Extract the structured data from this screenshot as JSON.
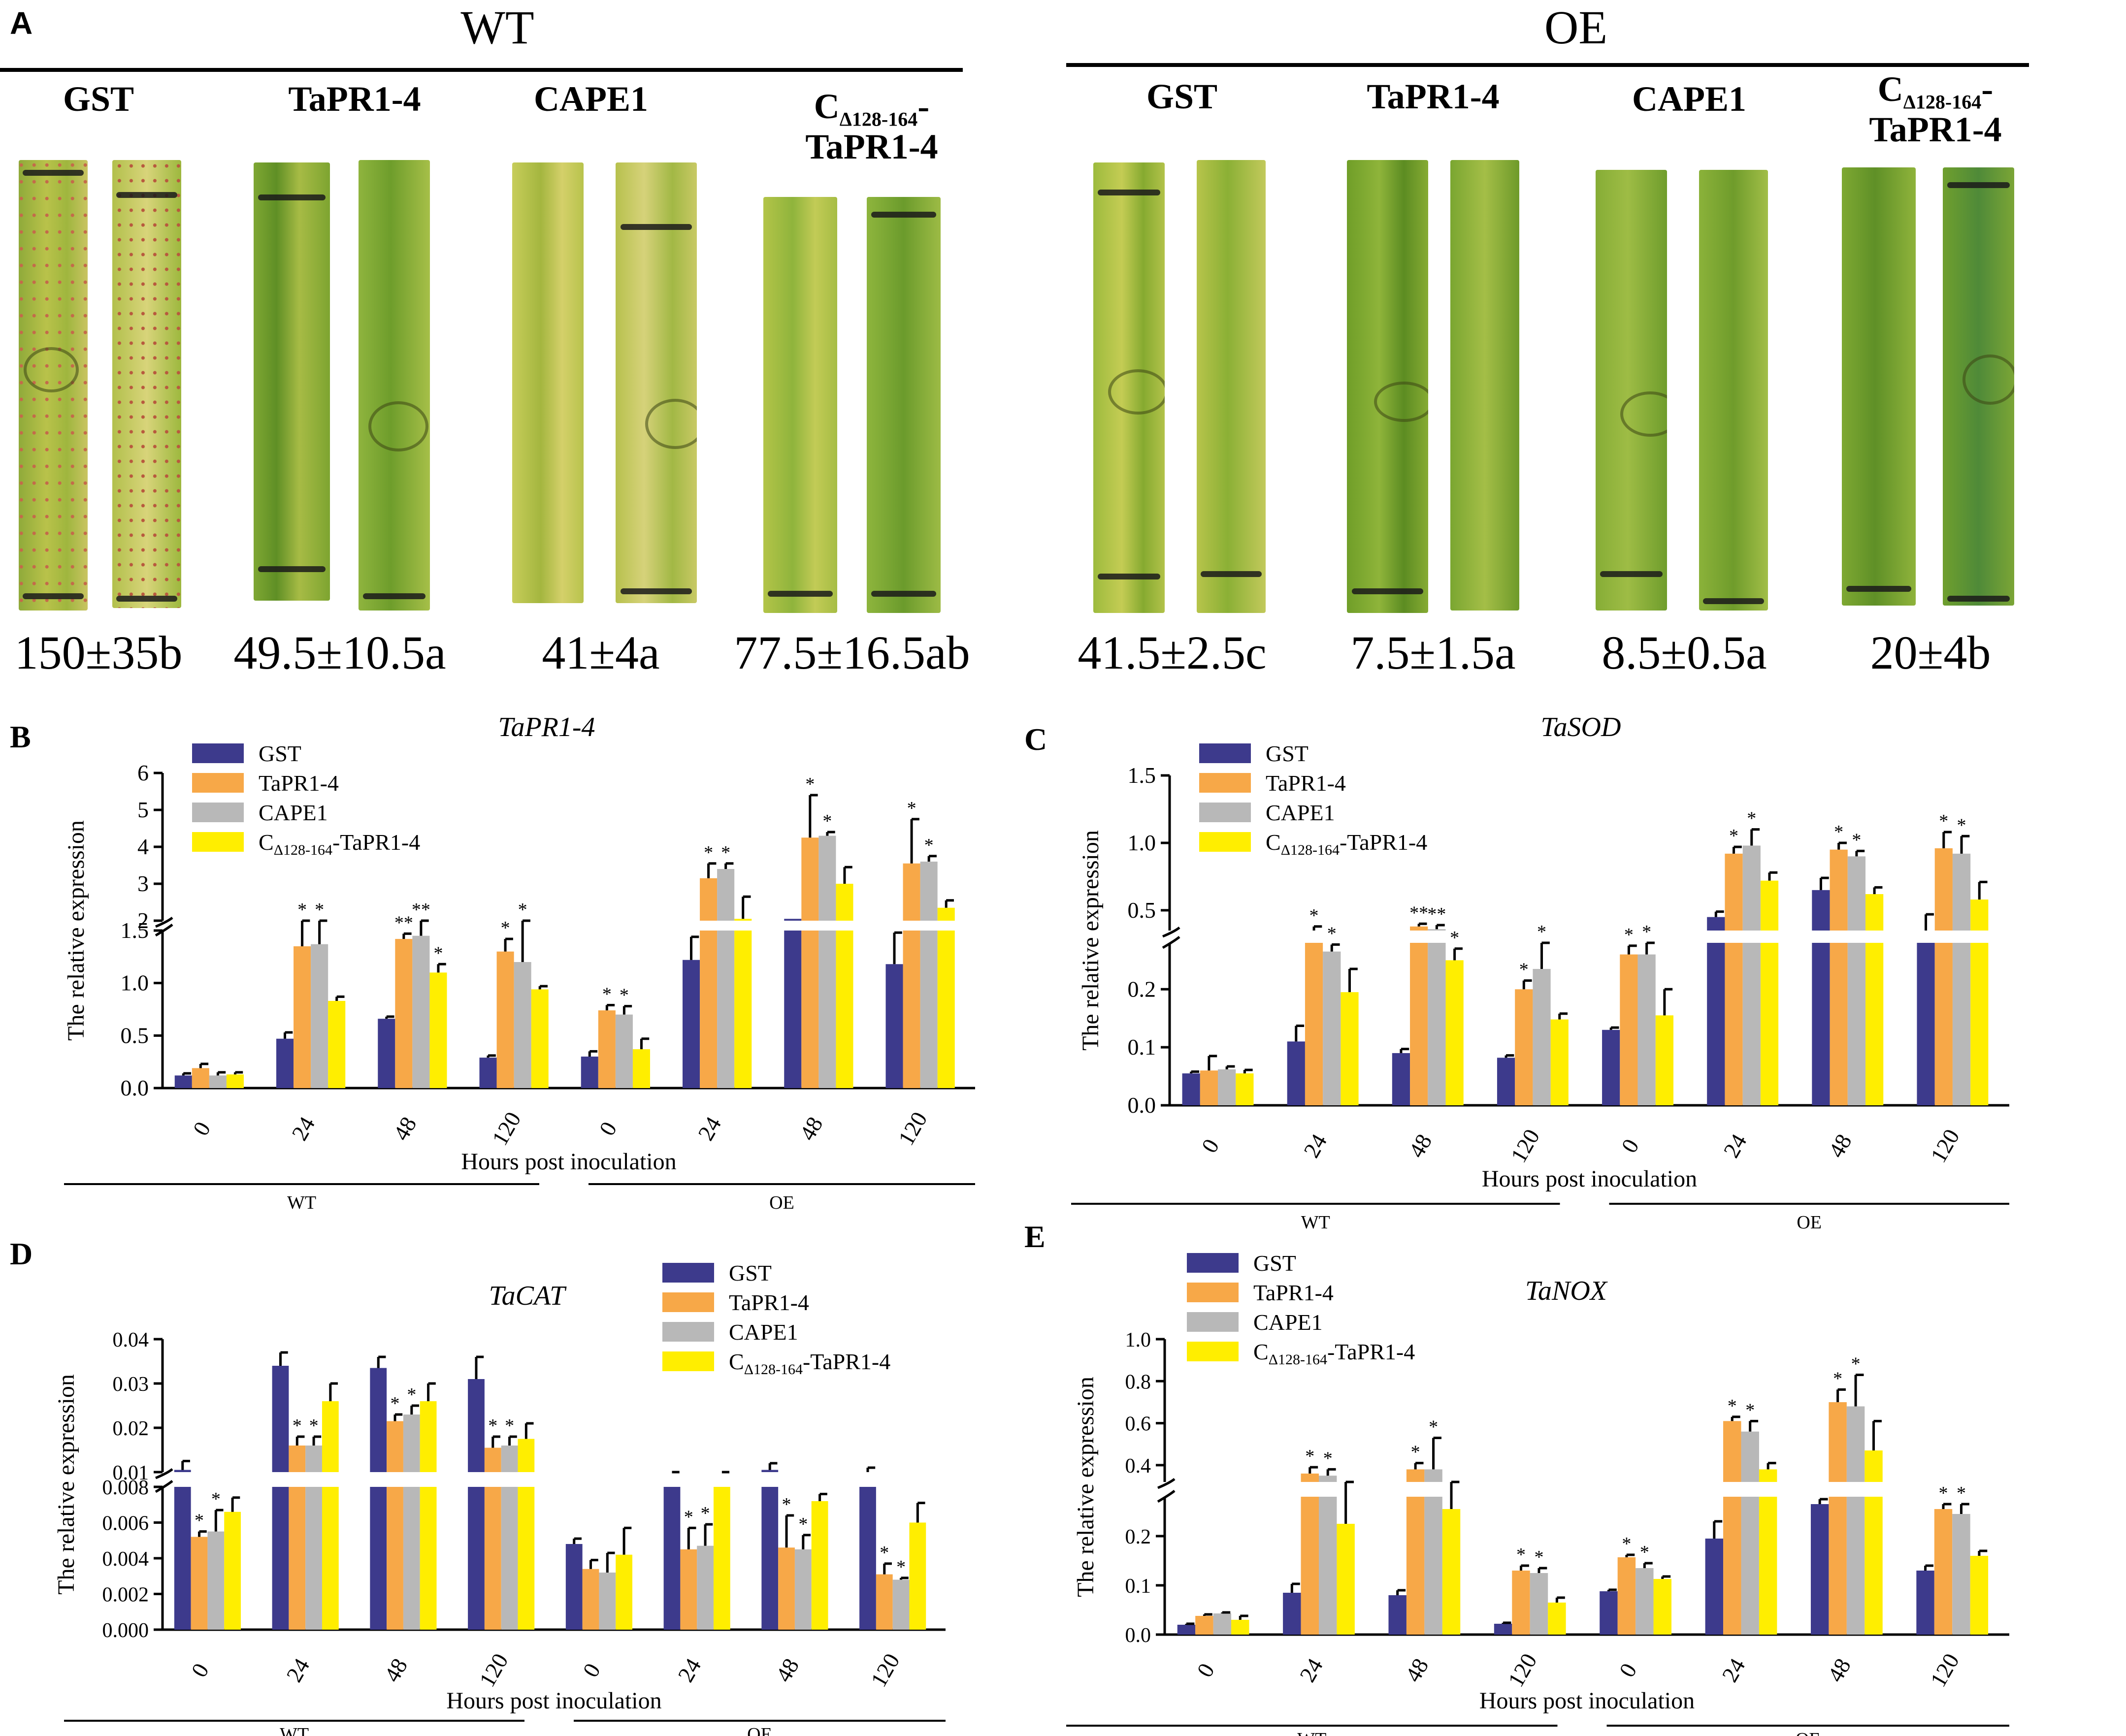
{
  "panel_a": {
    "letter": "A",
    "groups": [
      {
        "title": "WT",
        "treatments": [
          {
            "label": "GST",
            "count": "150±35b"
          },
          {
            "label": "TaPR1-4",
            "count": "49.5±10.5a"
          },
          {
            "label": "CAPE1",
            "count": "41±4a"
          },
          {
            "label_main": "C",
            "label_sub": "Δ128-164",
            "label_tail": "-",
            "label_line2": "TaPR1-4",
            "count": "77.5±16.5ab"
          }
        ]
      },
      {
        "title": "OE",
        "treatments": [
          {
            "label": "GST",
            "count": "41.5±2.5c"
          },
          {
            "label": "TaPR1-4",
            "count": "7.5±1.5a"
          },
          {
            "label": "CAPE1",
            "count": "8.5±0.5a"
          },
          {
            "label_main": "C",
            "label_sub": "Δ128-164",
            "label_tail": "-",
            "label_line2": "TaPR1-4",
            "count": "20±4b"
          }
        ]
      }
    ]
  },
  "legend": {
    "series": [
      {
        "name": "GST",
        "color": "#3d3a8c"
      },
      {
        "name": "TaPR1-4",
        "color": "#f7a848"
      },
      {
        "name": "CAPE1",
        "color": "#b8b8b8"
      },
      {
        "name_main": "C",
        "name_sub": "Δ128-164",
        "name_tail": "-TaPR1-4",
        "color": "#ffee00"
      }
    ]
  },
  "chart_data": [
    {
      "panel": "B",
      "type": "bar",
      "title": "TaPR1-4",
      "ylabel": "The relative expression",
      "xlabel": "Hours post inoculation",
      "categories": [
        "0",
        "24",
        "48",
        "120",
        "0",
        "24",
        "48",
        "120"
      ],
      "groups": [
        "WT",
        "OE"
      ],
      "broken_axis": {
        "lower": [
          0,
          1.5
        ],
        "upper": [
          2,
          6
        ]
      },
      "lower_ticks": [
        "0.0",
        "0.5",
        "1.0",
        "1.5"
      ],
      "upper_ticks": [
        "2",
        "3",
        "4",
        "5",
        "6"
      ],
      "series": [
        {
          "name": "GST",
          "values": [
            0.12,
            0.47,
            0.66,
            0.29,
            0.3,
            1.22,
            2.05,
            1.18
          ],
          "errors": [
            0.02,
            0.06,
            0.02,
            0.02,
            0.05,
            0.22,
            0.0,
            0.3
          ],
          "stars": [
            "",
            "",
            "",
            "",
            "",
            "",
            "",
            ""
          ]
        },
        {
          "name": "TaPR1-4",
          "values": [
            0.19,
            1.35,
            1.42,
            1.3,
            0.74,
            3.15,
            4.25,
            3.55
          ],
          "errors": [
            0.04,
            0.3,
            0.05,
            0.12,
            0.05,
            0.4,
            1.15,
            1.2
          ],
          "stars": [
            "",
            "*",
            "**",
            "*",
            "*",
            "*",
            "*",
            "*"
          ]
        },
        {
          "name": "CAPE1",
          "values": [
            0.12,
            1.37,
            1.45,
            1.2,
            0.7,
            3.4,
            4.3,
            3.6
          ],
          "errors": [
            0.03,
            0.25,
            0.06,
            0.42,
            0.08,
            0.15,
            0.1,
            0.15
          ],
          "stars": [
            "",
            "*",
            "**",
            "*",
            "*",
            "*",
            "*",
            "*"
          ]
        },
        {
          "name": "CΔ128-164-TaPR1-4",
          "values": [
            0.13,
            0.83,
            1.1,
            0.94,
            0.37,
            2.05,
            3.0,
            2.35
          ],
          "errors": [
            0.02,
            0.04,
            0.08,
            0.03,
            0.1,
            0.6,
            0.45,
            0.2
          ],
          "stars": [
            "",
            "",
            "*",
            "",
            "",
            "",
            "",
            ""
          ]
        }
      ]
    },
    {
      "panel": "C",
      "type": "bar",
      "title": "TaSOD",
      "ylabel": "The relative expression",
      "xlabel": "Hours post inoculation",
      "categories": [
        "0",
        "24",
        "48",
        "120",
        "0",
        "24",
        "48",
        "120"
      ],
      "groups": [
        "WT",
        "OE"
      ],
      "broken_axis": {
        "lower": [
          0,
          0.28
        ],
        "upper": [
          0.35,
          1.5
        ]
      },
      "lower_ticks": [
        "0.0",
        "0.1",
        "0.2"
      ],
      "upper_ticks": [
        "0.5",
        "1.0",
        "1.5"
      ],
      "series": [
        {
          "name": "GST",
          "values": [
            0.055,
            0.11,
            0.09,
            0.082,
            0.13,
            0.45,
            0.65,
            0.32
          ],
          "errors": [
            0.003,
            0.027,
            0.007,
            0.004,
            0.004,
            0.04,
            0.09,
            0.15
          ],
          "stars": [
            "",
            "",
            "",
            "",
            "",
            "",
            "",
            ""
          ]
        },
        {
          "name": "TaPR1-4",
          "values": [
            0.06,
            0.32,
            0.38,
            0.2,
            0.26,
            0.92,
            0.95,
            0.96
          ],
          "errors": [
            0.025,
            0.06,
            0.02,
            0.015,
            0.015,
            0.05,
            0.05,
            0.12
          ],
          "stars": [
            "",
            "*",
            "**",
            "*",
            "*",
            "*",
            "*",
            "*"
          ]
        },
        {
          "name": "CAPE1",
          "values": [
            0.062,
            0.265,
            0.36,
            0.235,
            0.26,
            0.98,
            0.9,
            0.92
          ],
          "errors": [
            0.005,
            0.012,
            0.03,
            0.045,
            0.02,
            0.12,
            0.04,
            0.13
          ],
          "stars": [
            "",
            "*",
            "**",
            "*",
            "*",
            "*",
            "*",
            "*"
          ]
        },
        {
          "name": "CΔ128-164-TaPR1-4",
          "values": [
            0.055,
            0.195,
            0.25,
            0.148,
            0.155,
            0.72,
            0.62,
            0.58
          ],
          "errors": [
            0.006,
            0.04,
            0.02,
            0.01,
            0.045,
            0.06,
            0.05,
            0.13
          ],
          "stars": [
            "",
            "",
            "*",
            "",
            "",
            "",
            "",
            ""
          ]
        }
      ]
    },
    {
      "panel": "D",
      "type": "bar",
      "title": "TaCAT",
      "ylabel": "The relative expression",
      "xlabel": "Hours post inoculation",
      "categories": [
        "0",
        "24",
        "48",
        "120",
        "0",
        "24",
        "48",
        "120"
      ],
      "groups": [
        "WT",
        "OE"
      ],
      "broken_axis": {
        "lower": [
          0,
          0.008
        ],
        "upper": [
          0.01,
          0.04
        ]
      },
      "lower_ticks": [
        "0.000",
        "0.002",
        "0.004",
        "0.006",
        "0.008"
      ],
      "upper_ticks": [
        "0.01",
        "0.02",
        "0.03",
        "0.04"
      ],
      "series": [
        {
          "name": "GST",
          "values": [
            0.0105,
            0.034,
            0.0335,
            0.031,
            0.0048,
            0.0095,
            0.0105,
            0.0095
          ],
          "errors": [
            0.002,
            0.003,
            0.0025,
            0.005,
            0.0003,
            0.0005,
            0.0015,
            0.0015
          ],
          "stars": [
            "",
            "",
            "",
            "",
            "",
            "",
            "",
            ""
          ]
        },
        {
          "name": "TaPR1-4",
          "values": [
            0.0052,
            0.016,
            0.0215,
            0.0155,
            0.0034,
            0.0045,
            0.0046,
            0.0031
          ],
          "errors": [
            0.0003,
            0.002,
            0.0015,
            0.0025,
            0.0005,
            0.0012,
            0.0018,
            0.0006
          ],
          "stars": [
            "*",
            "*",
            "*",
            "*",
            "",
            "*",
            "*",
            "*"
          ]
        },
        {
          "name": "CAPE1",
          "values": [
            0.0055,
            0.016,
            0.023,
            0.016,
            0.0032,
            0.0047,
            0.0045,
            0.0028
          ],
          "errors": [
            0.0012,
            0.002,
            0.002,
            0.002,
            0.0011,
            0.0012,
            0.0008,
            0.0001
          ],
          "stars": [
            "*",
            "*",
            "*",
            "*",
            "",
            "*",
            "*",
            "*"
          ]
        },
        {
          "name": "CΔ128-164-TaPR1-4",
          "values": [
            0.0066,
            0.026,
            0.026,
            0.0175,
            0.0042,
            0.0095,
            0.0072,
            0.006
          ],
          "errors": [
            0.0008,
            0.004,
            0.004,
            0.0035,
            0.0015,
            0.0005,
            0.0004,
            0.0011
          ],
          "stars": [
            "",
            "",
            "",
            "",
            "",
            "",
            "",
            ""
          ]
        }
      ]
    },
    {
      "panel": "E",
      "type": "bar",
      "title": "TaNOX",
      "ylabel": "The relative expression",
      "xlabel": "Hours post inoculation",
      "categories": [
        "0",
        "24",
        "48",
        "120",
        "0",
        "24",
        "48",
        "120"
      ],
      "groups": [
        "WT",
        "OE"
      ],
      "broken_axis": {
        "lower": [
          0,
          0.28
        ],
        "upper": [
          0.32,
          1.0
        ]
      },
      "lower_ticks": [
        "0.0",
        "0.1",
        "0.2"
      ],
      "upper_ticks": [
        "0.4",
        "0.6",
        "0.8",
        "1.0"
      ],
      "series": [
        {
          "name": "GST",
          "values": [
            0.02,
            0.085,
            0.08,
            0.022,
            0.088,
            0.195,
            0.265,
            0.13
          ],
          "errors": [
            0.002,
            0.018,
            0.01,
            0.002,
            0.003,
            0.035,
            0.01,
            0.01
          ],
          "stars": [
            "",
            "",
            "",
            "",
            "",
            "",
            "",
            ""
          ]
        },
        {
          "name": "TaPR1-4",
          "values": [
            0.038,
            0.36,
            0.38,
            0.13,
            0.157,
            0.61,
            0.7,
            0.255
          ],
          "errors": [
            0.003,
            0.03,
            0.03,
            0.01,
            0.005,
            0.02,
            0.06,
            0.01
          ],
          "stars": [
            "",
            "*",
            "*",
            "*",
            "*",
            "*",
            "*",
            "*"
          ]
        },
        {
          "name": "CAPE1",
          "values": [
            0.043,
            0.35,
            0.38,
            0.125,
            0.135,
            0.56,
            0.68,
            0.245
          ],
          "errors": [
            0.002,
            0.03,
            0.15,
            0.01,
            0.01,
            0.05,
            0.15,
            0.02
          ],
          "stars": [
            "",
            "*",
            "*",
            "*",
            "*",
            "*",
            "*",
            "*"
          ]
        },
        {
          "name": "CΔ128-164-TaPR1-4",
          "values": [
            0.03,
            0.225,
            0.255,
            0.065,
            0.113,
            0.38,
            0.47,
            0.16
          ],
          "errors": [
            0.008,
            0.06,
            0.03,
            0.01,
            0.005,
            0.03,
            0.14,
            0.01
          ],
          "stars": [
            "",
            "",
            "",
            "",
            "",
            "",
            "",
            ""
          ]
        }
      ]
    }
  ]
}
